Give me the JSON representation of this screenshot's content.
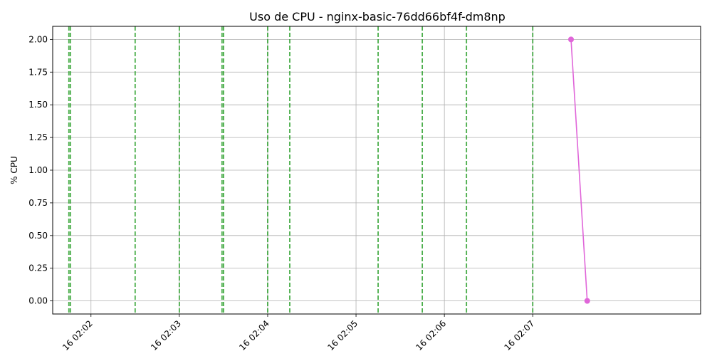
{
  "chart_data": {
    "type": "line",
    "title": "Uso de CPU - nginx-basic-76dd66bf4f-dm8np",
    "xlabel": "",
    "ylabel": "% CPU",
    "xlim": [
      "02:01:34",
      "02:08:54"
    ],
    "ylim": [
      -0.1,
      2.1
    ],
    "grid": true,
    "x_ticks": [
      {
        "t": "02:02:00",
        "label": "16 02:02"
      },
      {
        "t": "02:03:00",
        "label": "16 02:03"
      },
      {
        "t": "02:04:00",
        "label": "16 02:04"
      },
      {
        "t": "02:05:00",
        "label": "16 02:05"
      },
      {
        "t": "02:06:00",
        "label": "16 02:06"
      },
      {
        "t": "02:07:00",
        "label": "16 02:07"
      }
    ],
    "y_ticks": [
      {
        "v": 0.0,
        "label": "0.00"
      },
      {
        "v": 0.25,
        "label": "0.25"
      },
      {
        "v": 0.5,
        "label": "0.50"
      },
      {
        "v": 0.75,
        "label": "0.75"
      },
      {
        "v": 1.0,
        "label": "1.00"
      },
      {
        "v": 1.25,
        "label": "1.25"
      },
      {
        "v": 1.5,
        "label": "1.50"
      },
      {
        "v": 1.75,
        "label": "1.75"
      },
      {
        "v": 2.0,
        "label": "2.00"
      }
    ],
    "series": [
      {
        "color": "#e066d9",
        "points": [
          {
            "t": "02:07:26",
            "y": 2.0
          },
          {
            "t": "02:07:37",
            "y": 0.0
          }
        ]
      }
    ],
    "vlines": {
      "color": "#2ca02c",
      "style": "dashed",
      "times": [
        "02:01:45",
        "02:01:46",
        "02:02:30",
        "02:03:00",
        "02:03:29",
        "02:03:30",
        "02:04:00",
        "02:04:15",
        "02:05:15",
        "02:05:45",
        "02:06:15",
        "02:07:00"
      ]
    }
  }
}
